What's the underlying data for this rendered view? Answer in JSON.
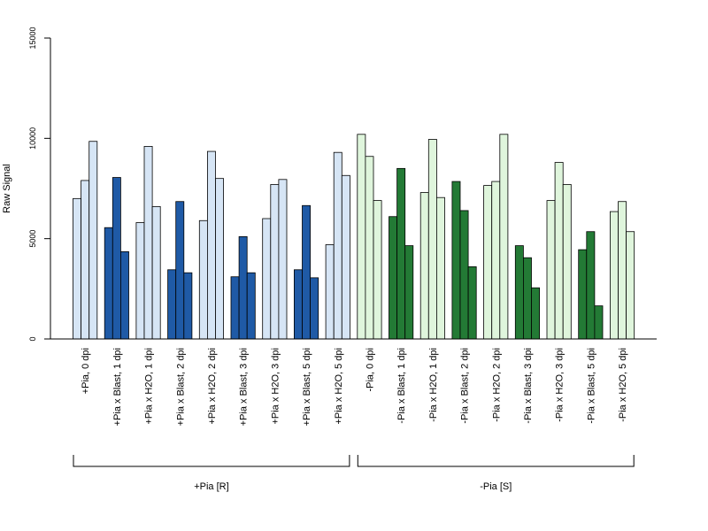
{
  "chart_data": {
    "type": "bar",
    "ylabel": "Raw Signal",
    "ylim": [
      0,
      15000
    ],
    "yticks": [
      0,
      5000,
      10000,
      15000
    ],
    "categories": [
      "+Pia, 0 dpi",
      "+Pia x Blast, 1 dpi",
      "+Pia x H2O, 1 dpi",
      "+Pia x Blast, 2 dpi",
      "+Pia x H2O, 2 dpi",
      "+Pia x Blast, 3 dpi",
      "+Pia x H2O, 3 dpi",
      "+Pia x Blast, 5 dpi",
      "+Pia x H2O, 5 dpi",
      "-Pia, 0 dpi",
      "-Pia x Blast, 1 dpi",
      "-Pia x H2O, 1 dpi",
      "-Pia x Blast, 2 dpi",
      "-Pia x H2O, 2 dpi",
      "-Pia x Blast, 3 dpi",
      "-Pia x H2O, 3 dpi",
      "-Pia x Blast, 5 dpi",
      "-Pia x H2O, 5 dpi"
    ],
    "replicates_per_category": 3,
    "values": [
      [
        7000,
        7900,
        9850
      ],
      [
        5550,
        8050,
        4350
      ],
      [
        5800,
        9600,
        6600
      ],
      [
        3450,
        6850,
        3300
      ],
      [
        5900,
        9350,
        8000
      ],
      [
        3100,
        5100,
        3300
      ],
      [
        6000,
        7700,
        7950
      ],
      [
        3450,
        6650,
        3050
      ],
      [
        4700,
        9300,
        8150
      ],
      [
        10200,
        9100,
        6900
      ],
      [
        6100,
        8500,
        4650
      ],
      [
        7300,
        9950,
        7050
      ],
      [
        7850,
        6400,
        3600
      ],
      [
        7650,
        7850,
        10200
      ],
      [
        4650,
        4050,
        2550
      ],
      [
        6900,
        8800,
        7700
      ],
      [
        4450,
        5350,
        1650
      ],
      [
        6350,
        6850,
        5350
      ]
    ],
    "colors": {
      "light_blue": "#d6e5f5",
      "dark_blue": "#1f5aa6",
      "light_green": "#dff5dc",
      "dark_green": "#237a35"
    },
    "category_colors": [
      "light_blue",
      "dark_blue",
      "light_blue",
      "dark_blue",
      "light_blue",
      "dark_blue",
      "light_blue",
      "dark_blue",
      "light_blue",
      "light_green",
      "dark_green",
      "light_green",
      "dark_green",
      "light_green",
      "dark_green",
      "light_green",
      "dark_green",
      "light_green"
    ],
    "groups": [
      {
        "label": "+Pia [R]",
        "categories": [
          0,
          8
        ]
      },
      {
        "label": "-Pia [S]",
        "categories": [
          9,
          17
        ]
      }
    ]
  }
}
